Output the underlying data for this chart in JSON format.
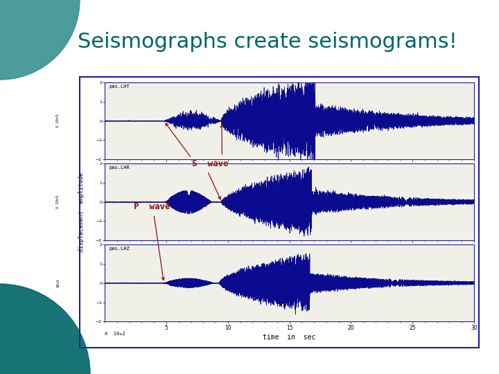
{
  "title": "Seismographs create seismograms!",
  "title_color": "#006666",
  "title_fontsize": 22,
  "bg_color": "#ffffff",
  "teal_color": "#2E8B8B",
  "teal_dark": "#006666",
  "separator_color": "#222222",
  "image_border_color": "#1a1aaa",
  "image_bg": "#f0f0e8",
  "subplot_labels": [
    "pas.LHT",
    "pas.LHR",
    "pas.LHZ"
  ],
  "x_label": "time  in  sec",
  "y_label": "displacement  amplitude",
  "x_scale_label": "X  10+2",
  "y_scale_labels": [
    "X 10+5",
    "X 10+5",
    "10+5"
  ],
  "s_wave_text": "S  wave",
  "p_wave_text": "P  wave",
  "arrow_color": "#8B1010",
  "wave_color": "#00008B",
  "wave_color2": "#8888CC",
  "x_ticks": [
    5,
    10,
    15,
    20,
    25,
    30
  ],
  "x_lim": [
    0,
    30
  ],
  "y_lim": [
    -2,
    2
  ],
  "p_onset": 4.8,
  "s_onset": 9.5,
  "seismo_peak": 17.0
}
